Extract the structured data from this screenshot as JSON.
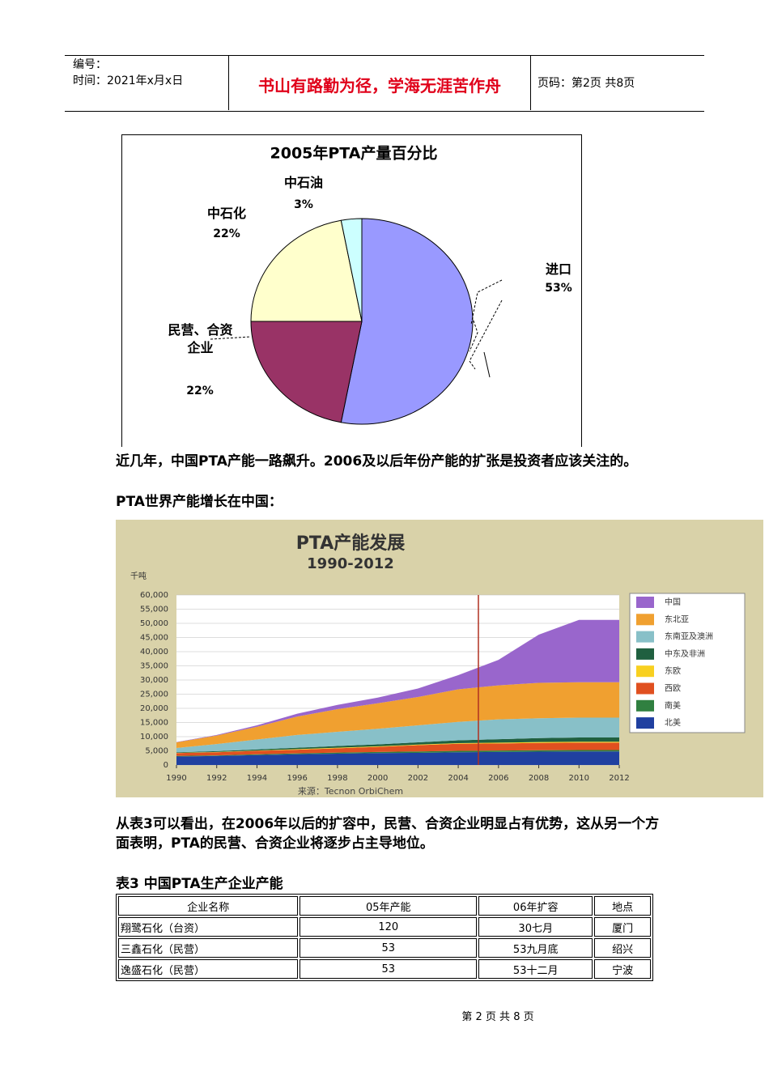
{
  "header": {
    "serial": "编号：",
    "date": "时间：2021年x月x日",
    "motto": "书山有路勤为径，学海无涯苦作舟",
    "page": "页码：第2页  共8页"
  },
  "chart_data": [
    {
      "type": "pie",
      "title": "2005年PTA产量百分比",
      "categories": [
        "进口",
        "民营、合资企业",
        "中石化",
        "中石油"
      ],
      "values": [
        53,
        22,
        22,
        3
      ],
      "value_labels": [
        "53%",
        "22%",
        "22%",
        "3%"
      ],
      "colors": [
        "#9999ff",
        "#993366",
        "#ffffcc",
        "#ccffff"
      ]
    },
    {
      "type": "area",
      "stacked": true,
      "title": "PTA产能发展",
      "subtitle": "1990-2012",
      "y_label": "千吨",
      "source": "来源：Tecnon OrbiChem",
      "x": [
        1990,
        1992,
        1994,
        1996,
        1998,
        2000,
        2002,
        2004,
        2006,
        2008,
        2010,
        2012
      ],
      "xlim": [
        1990,
        2012
      ],
      "xticks": [
        1990,
        1992,
        1994,
        1996,
        1998,
        2000,
        2002,
        2004,
        2006,
        2008,
        2010,
        2012
      ],
      "ylim": [
        0,
        60000
      ],
      "yticks": [
        0,
        {
          "value": 5000,
          "label": "5,000"
        },
        {
          "value": 10000,
          "label": "10,000"
        },
        {
          "value": 15000,
          "label": "15,000"
        },
        {
          "value": 20000,
          "label": "20,000"
        },
        {
          "value": 25000,
          "label": "25,000"
        },
        {
          "value": 30000,
          "label": "30,000"
        },
        {
          "value": 35000,
          "label": "35,000"
        },
        {
          "value": 40000,
          "label": "40,000"
        },
        {
          "value": 45000,
          "label": "45,000"
        },
        {
          "value": 50000,
          "label": "50,000"
        },
        {
          "value": 55000,
          "label": "55,000"
        },
        {
          "value": 60000,
          "label": "60,000"
        }
      ],
      "grid": true,
      "legend": "right",
      "series": [
        {
          "name": "中国",
          "color": "#9966cc",
          "values": [
            100,
            200,
            500,
            1000,
            1500,
            2000,
            3000,
            5000,
            9000,
            17000,
            22000,
            22000
          ]
        },
        {
          "name": "东北亚",
          "color": "#f0a030",
          "values": [
            2000,
            3000,
            4500,
            6500,
            8000,
            9000,
            10000,
            11500,
            12000,
            12500,
            12500,
            12500
          ]
        },
        {
          "name": "东南亚及澳洲",
          "color": "#88c0c8",
          "values": [
            1500,
            2500,
            3500,
            4500,
            5000,
            5500,
            6000,
            6500,
            7000,
            7000,
            7000,
            7000
          ]
        },
        {
          "name": "中东及非洲",
          "color": "#206040",
          "values": [
            200,
            300,
            400,
            500,
            600,
            700,
            800,
            1000,
            1200,
            1400,
            1500,
            1500
          ]
        },
        {
          "name": "东欧",
          "color": "#f8d020",
          "values": [
            100,
            100,
            100,
            200,
            200,
            200,
            200,
            200,
            300,
            300,
            300,
            300
          ]
        },
        {
          "name": "西欧",
          "color": "#e05020",
          "values": [
            1000,
            1100,
            1200,
            1300,
            1500,
            1800,
            2200,
            2500,
            2500,
            2600,
            2600,
            2600
          ]
        },
        {
          "name": "南美",
          "color": "#308040",
          "values": [
            200,
            200,
            300,
            300,
            400,
            400,
            500,
            500,
            500,
            500,
            500,
            500
          ]
        },
        {
          "name": "北美",
          "color": "#2040a0",
          "values": [
            3000,
            3200,
            3500,
            3800,
            4000,
            4200,
            4300,
            4500,
            4600,
            4700,
            4800,
            4800
          ]
        }
      ]
    }
  ],
  "paragraphs": [
    "近几年，中国PTA产能一路飙升。2006及以后年份产能的扩张是投资者应该关注的。",
    "PTA世界产能增长在中国：",
    "从表3可以看出，在2006年以后的扩容中，民营、合资企业明显占有优势，这从另一个方面表明，PTA的民营、合资企业将逐步占主导地位。"
  ],
  "table": {
    "caption": "表3  中国PTA生产企业产能",
    "columns": [
      "企业名称",
      "05年产能",
      "06年扩容",
      "地点"
    ],
    "rows": [
      [
        "翔鹭石化（台资）",
        "120",
        "30七月",
        "厦门"
      ],
      [
        "三鑫石化（民营）",
        "53",
        "53九月底",
        "绍兴"
      ],
      [
        "逸盛石化（民营）",
        "53",
        "53十二月",
        "宁波"
      ]
    ]
  },
  "footer": "第 2 页 共 8 页"
}
